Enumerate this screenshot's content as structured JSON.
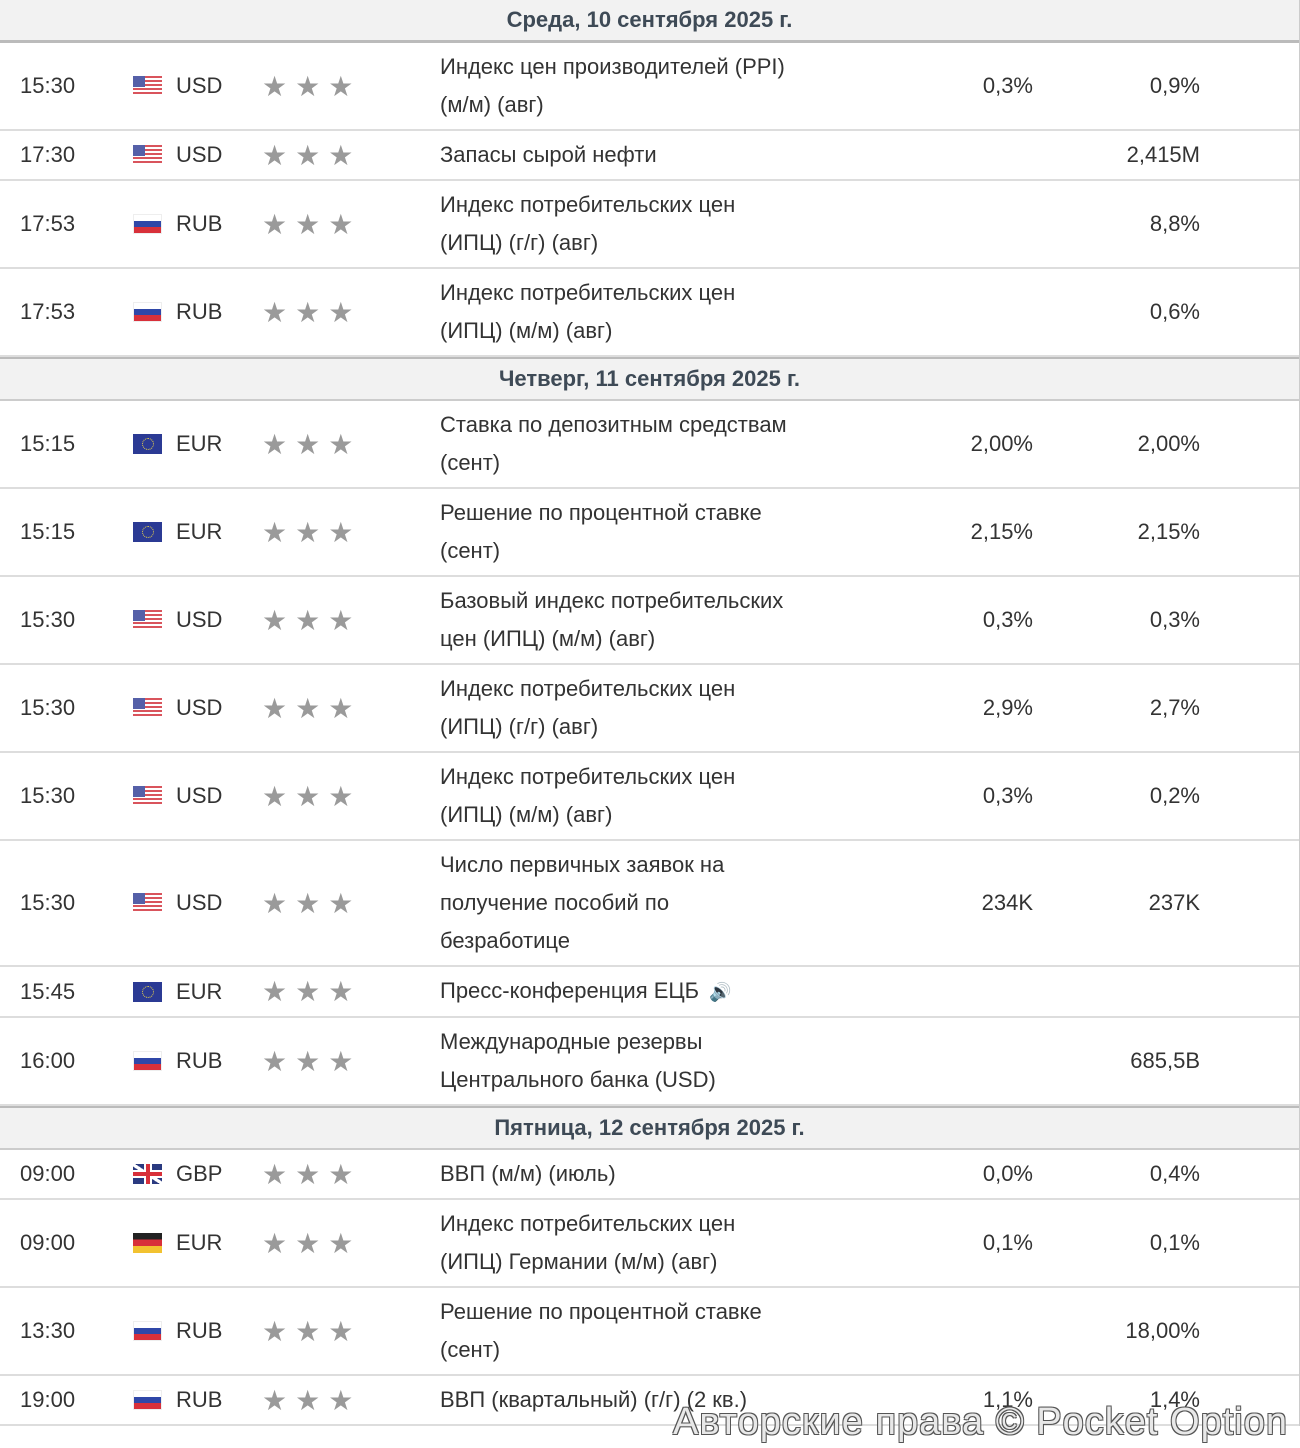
{
  "days": [
    {
      "title": "Среда, 10 сентября 2025 г.",
      "events": [
        {
          "time": "15:30",
          "flag": "us",
          "currency": "USD",
          "event": "Индекс цен производителей (PPI) (м/м) (авг)",
          "forecast": "0,3%",
          "previous": "0,9%"
        },
        {
          "time": "17:30",
          "flag": "us",
          "currency": "USD",
          "event": "Запасы сырой нефти",
          "forecast": "",
          "previous": "2,415M"
        },
        {
          "time": "17:53",
          "flag": "ru",
          "currency": "RUB",
          "event": "Индекс потребительских цен (ИПЦ) (г/г) (авг)",
          "forecast": "",
          "previous": "8,8%"
        },
        {
          "time": "17:53",
          "flag": "ru",
          "currency": "RUB",
          "event": "Индекс потребительских цен (ИПЦ) (м/м) (авг)",
          "forecast": "",
          "previous": "0,6%"
        }
      ]
    },
    {
      "title": "Четверг, 11 сентября 2025 г.",
      "events": [
        {
          "time": "15:15",
          "flag": "eu",
          "currency": "EUR",
          "event": "Ставка по депозитным средствам (сент)",
          "forecast": "2,00%",
          "previous": "2,00%"
        },
        {
          "time": "15:15",
          "flag": "eu",
          "currency": "EUR",
          "event": "Решение по процентной ставке (сент)",
          "forecast": "2,15%",
          "previous": "2,15%"
        },
        {
          "time": "15:30",
          "flag": "us",
          "currency": "USD",
          "event": "Базовый индекс потребительских цен (ИПЦ) (м/м) (авг)",
          "forecast": "0,3%",
          "previous": "0,3%"
        },
        {
          "time": "15:30",
          "flag": "us",
          "currency": "USD",
          "event": "Индекс потребительских цен (ИПЦ) (г/г) (авг)",
          "forecast": "2,9%",
          "previous": "2,7%"
        },
        {
          "time": "15:30",
          "flag": "us",
          "currency": "USD",
          "event": "Индекс потребительских цен (ИПЦ) (м/м) (авг)",
          "forecast": "0,3%",
          "previous": "0,2%"
        },
        {
          "time": "15:30",
          "flag": "us",
          "currency": "USD",
          "event": "Число первичных заявок на получение пособий по безработице",
          "forecast": "234K",
          "previous": "237K"
        },
        {
          "time": "15:45",
          "flag": "eu",
          "currency": "EUR",
          "event": "Пресс-конференция ЕЦБ",
          "speech": true,
          "forecast": "",
          "previous": ""
        },
        {
          "time": "16:00",
          "flag": "ru",
          "currency": "RUB",
          "event": "Международные резервы Центрального банка (USD)",
          "forecast": "",
          "previous": "685,5B"
        }
      ]
    },
    {
      "title": "Пятница, 12 сентября 2025 г.",
      "events": [
        {
          "time": "09:00",
          "flag": "gb",
          "currency": "GBP",
          "event": "ВВП (м/м) (июль)",
          "forecast": "0,0%",
          "previous": "0,4%"
        },
        {
          "time": "09:00",
          "flag": "de",
          "currency": "EUR",
          "event": "Индекс потребительских цен (ИПЦ) Германии (м/м) (авг)",
          "forecast": "0,1%",
          "previous": "0,1%"
        },
        {
          "time": "13:30",
          "flag": "ru",
          "currency": "RUB",
          "event": "Решение по процентной ставке (сент)",
          "forecast": "",
          "previous": "18,00%"
        },
        {
          "time": "19:00",
          "flag": "ru",
          "currency": "RUB",
          "event": "ВВП (квартальный) (г/г) (2 кв.)",
          "forecast": "1,1%",
          "previous": "1,4%"
        }
      ]
    }
  ],
  "stars": "★★★",
  "watermark": "Авторские права © Pocket Option"
}
